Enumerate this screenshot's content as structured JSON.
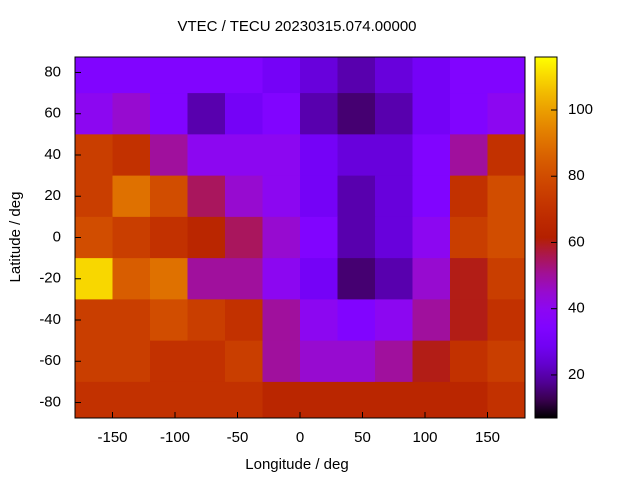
{
  "chart_data": {
    "type": "heatmap",
    "title": "VTEC / TECU 20230315.074.00000",
    "x_label": "Longitude / deg",
    "y_label": "Latitude / deg",
    "x": [
      -165,
      -135,
      -105,
      -75,
      -45,
      -15,
      15,
      45,
      75,
      105,
      135,
      165
    ],
    "y": [
      80,
      60,
      40,
      20,
      0,
      -20,
      -40,
      -60,
      -80
    ],
    "z": [
      [
        35,
        35,
        35,
        35,
        35,
        30,
        25,
        20,
        25,
        30,
        35,
        35
      ],
      [
        40,
        45,
        35,
        20,
        30,
        35,
        20,
        15,
        20,
        30,
        35,
        40
      ],
      [
        75,
        70,
        50,
        40,
        40,
        40,
        30,
        25,
        25,
        35,
        50,
        70
      ],
      [
        75,
        90,
        80,
        55,
        45,
        40,
        30,
        20,
        25,
        35,
        70,
        80
      ],
      [
        80,
        75,
        70,
        65,
        55,
        45,
        35,
        20,
        25,
        40,
        75,
        80
      ],
      [
        110,
        85,
        90,
        50,
        50,
        40,
        30,
        15,
        20,
        45,
        60,
        75
      ],
      [
        75,
        75,
        80,
        75,
        70,
        50,
        40,
        35,
        40,
        50,
        60,
        70
      ],
      [
        75,
        75,
        70,
        70,
        75,
        50,
        45,
        45,
        50,
        60,
        70,
        75
      ],
      [
        70,
        70,
        70,
        70,
        70,
        65,
        65,
        65,
        65,
        65,
        65,
        70
      ]
    ],
    "xlim": [
      -180,
      180
    ],
    "ylim": [
      -87.5,
      87.5
    ],
    "xticks": [
      -150,
      -100,
      -50,
      0,
      50,
      100,
      150
    ],
    "yticks": [
      -80,
      -60,
      -40,
      -20,
      0,
      20,
      40,
      60,
      80
    ],
    "clim": [
      7,
      116
    ],
    "cticks": [
      20,
      40,
      60,
      80,
      100
    ]
  }
}
